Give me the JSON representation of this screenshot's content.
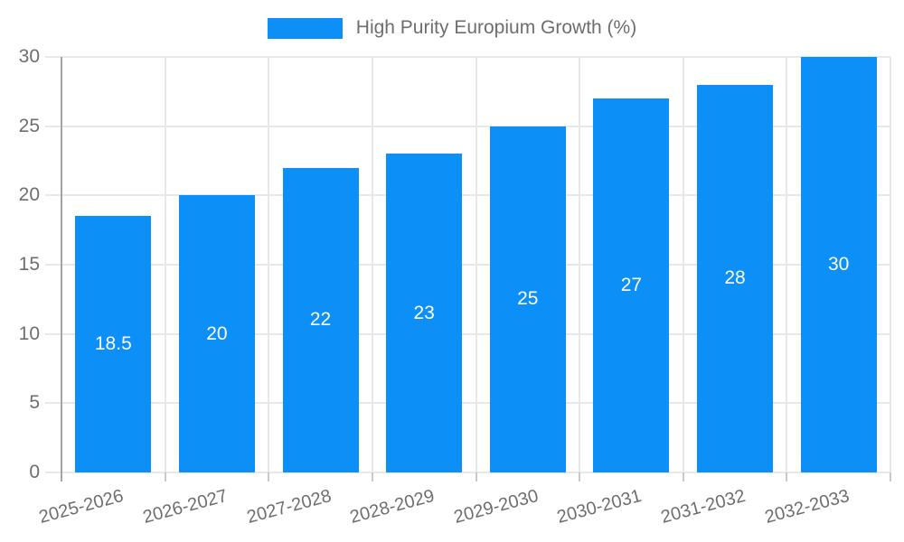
{
  "chart_data": {
    "type": "bar",
    "title": "High Purity Europium Growth (%)",
    "legend": {
      "position": "top-center",
      "entries": [
        {
          "label": "High Purity Europium Growth (%)",
          "swatch_color": "#0c90f8"
        }
      ]
    },
    "categories": [
      "2025-2026",
      "2026-2027",
      "2027-2028",
      "2028-2029",
      "2029-2030",
      "2030-2031",
      "2031-2032",
      "2032-2033"
    ],
    "values": [
      18.5,
      20,
      22,
      23,
      25,
      27,
      28,
      30
    ],
    "data_labels": [
      "18.5",
      "20",
      "22",
      "23",
      "25",
      "27",
      "28",
      "30"
    ],
    "data_label_position": "inside-center",
    "data_label_color": "#ffffff",
    "xlabel": "",
    "ylabel": "",
    "ylim": [
      0,
      30
    ],
    "yticks": [
      0,
      5,
      10,
      15,
      20,
      25,
      30
    ],
    "grid": true,
    "x_tick_rotation_deg": -15,
    "bar_color": "#0c90f8"
  },
  "colors": {
    "background": "#ffffff",
    "grid_line": "#e8e8e8",
    "axis_line": "#a3a3a3",
    "bottom_tick": "#c9c9c9",
    "text_gray": "#6e6e6e"
  }
}
